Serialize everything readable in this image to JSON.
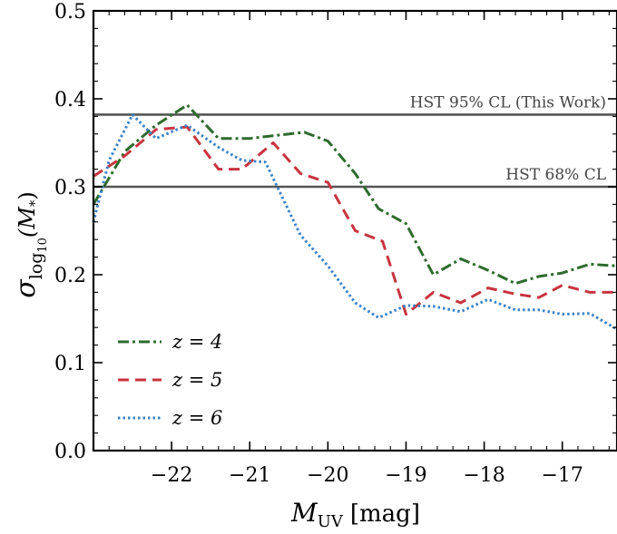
{
  "chart_data": {
    "type": "line",
    "xlabel": "M_UV [mag]",
    "xlabel_main": "M",
    "xlabel_sub": "UV",
    "xlabel_unit": "[mag]",
    "ylabel": "σ_log10(M*)",
    "ylabel_sigma": "σ",
    "ylabel_sub": "log",
    "ylabel_subsub": "10",
    "ylabel_arg": "(M",
    "ylabel_argsub": "*",
    "ylabel_close": ")",
    "xlim": [
      -23.0,
      -16.3
    ],
    "ylim": [
      0.0,
      0.5
    ],
    "x_ticks": [
      {
        "value": -22,
        "label": "−22"
      },
      {
        "value": -21,
        "label": "−21"
      },
      {
        "value": -20,
        "label": "−20"
      },
      {
        "value": -19,
        "label": "−19"
      },
      {
        "value": -18,
        "label": "−18"
      },
      {
        "value": -17,
        "label": "−17"
      }
    ],
    "y_ticks": [
      {
        "value": 0.0,
        "label": "0.0"
      },
      {
        "value": 0.1,
        "label": "0.1"
      },
      {
        "value": 0.2,
        "label": "0.2"
      },
      {
        "value": 0.3,
        "label": "0.3"
      },
      {
        "value": 0.4,
        "label": "0.4"
      },
      {
        "value": 0.5,
        "label": "0.5"
      }
    ],
    "reference_lines": [
      {
        "name": "HST 95% CL (This Work)",
        "y": 0.382,
        "color": "#555555"
      },
      {
        "name": "HST 68% CL",
        "y": 0.3,
        "color": "#555555"
      }
    ],
    "series": [
      {
        "name": "z = 4",
        "color": "#2e6b2e",
        "dash": "12,4,3,4",
        "x": [
          -23.0,
          -22.6,
          -22.2,
          -21.8,
          -21.4,
          -21.0,
          -20.7,
          -20.3,
          -20.0,
          -19.65,
          -19.35,
          -19.0,
          -18.65,
          -18.3,
          -17.95,
          -17.6,
          -17.3,
          -17.0,
          -16.65,
          -16.3
        ],
        "y": [
          0.28,
          0.34,
          0.37,
          0.393,
          0.355,
          0.355,
          0.358,
          0.362,
          0.352,
          0.315,
          0.275,
          0.258,
          0.2,
          0.218,
          0.205,
          0.19,
          0.198,
          0.202,
          0.212,
          0.21
        ]
      },
      {
        "name": "z = 5",
        "color": "#c8343e",
        "dash": "12,7",
        "x": [
          -23.0,
          -22.6,
          -22.2,
          -21.8,
          -21.4,
          -21.1,
          -20.7,
          -20.35,
          -20.0,
          -19.65,
          -19.3,
          -19.0,
          -18.65,
          -18.3,
          -17.95,
          -17.6,
          -17.3,
          -17.0,
          -16.65,
          -16.3
        ],
        "y": [
          0.312,
          0.335,
          0.365,
          0.368,
          0.32,
          0.32,
          0.35,
          0.315,
          0.305,
          0.25,
          0.238,
          0.155,
          0.18,
          0.168,
          0.185,
          0.178,
          0.174,
          0.188,
          0.18,
          0.18
        ]
      },
      {
        "name": "z = 6",
        "color": "#3b82c6",
        "dash": "2.5,3",
        "x": [
          -23.0,
          -22.8,
          -22.5,
          -22.2,
          -21.8,
          -21.4,
          -21.1,
          -20.8,
          -20.35,
          -20.0,
          -19.65,
          -19.35,
          -19.0,
          -18.65,
          -18.3,
          -17.95,
          -17.6,
          -17.3,
          -17.0,
          -16.65,
          -16.3
        ],
        "y": [
          0.26,
          0.33,
          0.382,
          0.355,
          0.37,
          0.345,
          0.33,
          0.328,
          0.245,
          0.21,
          0.168,
          0.151,
          0.165,
          0.164,
          0.158,
          0.172,
          0.16,
          0.16,
          0.155,
          0.156,
          0.138
        ]
      }
    ]
  }
}
